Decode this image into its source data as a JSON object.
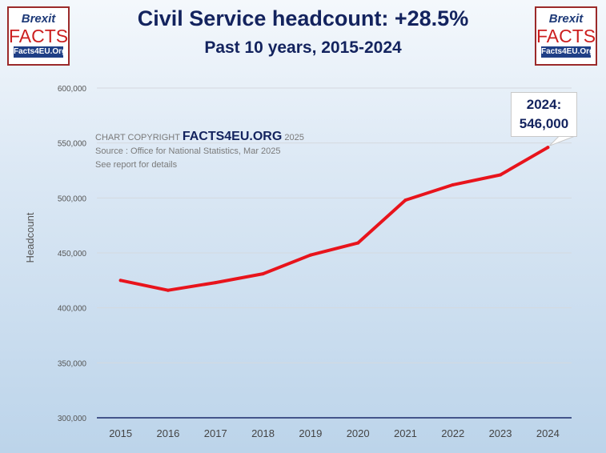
{
  "logos": {
    "line1": "Brexit",
    "line2": "FACTS",
    "line3": "Facts4EU.Org"
  },
  "copyright": {
    "prefix": "CHART COPYRIGHT",
    "brand": "FACTS4EU.ORG",
    "year": "2025",
    "source": "Source : Office for National Statistics, Mar 2025",
    "note": "See report for details"
  },
  "callout": {
    "label": "2024:",
    "value": "546,000"
  },
  "chart_data": {
    "type": "line",
    "title": "Civil Service headcount: +28.5%",
    "subtitle": "Past 10 years, 2015-2024",
    "xlabel": "",
    "ylabel": "Headcount",
    "categories": [
      "2015",
      "2016",
      "2017",
      "2018",
      "2019",
      "2020",
      "2021",
      "2022",
      "2023",
      "2024"
    ],
    "series": [
      {
        "name": "Civil Service headcount",
        "color": "#e8141c",
        "values": [
          425000,
          416000,
          423000,
          431000,
          448000,
          459000,
          498000,
          512000,
          521000,
          546000
        ]
      }
    ],
    "ylim": [
      300000,
      600000
    ],
    "yticks": [
      300000,
      350000,
      400000,
      450000,
      500000,
      550000,
      600000
    ],
    "ytick_labels": [
      "300,000",
      "350,000",
      "400,000",
      "450,000",
      "500,000",
      "550,000",
      "600,000"
    ],
    "grid": true,
    "legend": "none"
  }
}
